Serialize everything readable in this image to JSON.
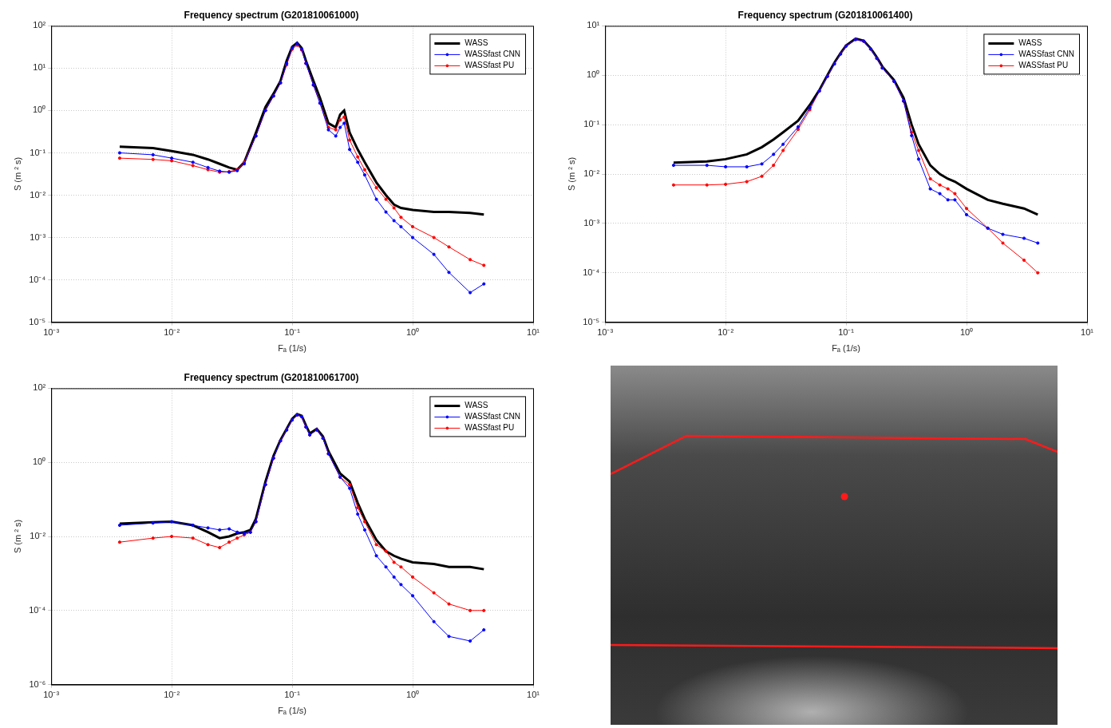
{
  "chart_data": [
    {
      "type": "line",
      "title": "Frequency spectrum (G201810061000)",
      "x_label": "Fₐ (1/s)",
      "y_label": "S (m ² s)",
      "log": true,
      "grid": true,
      "legend": "northeast",
      "xlim": [
        0.001,
        10
      ],
      "xticks": [
        {
          "value": 0.001,
          "label": "10⁻³"
        },
        {
          "value": 0.01,
          "label": "10⁻²"
        },
        {
          "value": 0.1,
          "label": "10⁻¹"
        },
        {
          "value": 1,
          "label": "10⁰"
        },
        {
          "value": 10,
          "label": "10¹"
        }
      ],
      "ylim": [
        1e-05,
        100
      ],
      "yticks": [
        {
          "value": 1e-05,
          "label": "10⁻⁵"
        },
        {
          "value": 0.0001,
          "label": "10⁻⁴"
        },
        {
          "value": 0.001,
          "label": "10⁻³"
        },
        {
          "value": 0.01,
          "label": "10⁻²"
        },
        {
          "value": 0.1,
          "label": "10⁻¹"
        },
        {
          "value": 1,
          "label": "10⁰"
        },
        {
          "value": 10,
          "label": "10¹"
        },
        {
          "value": 100,
          "label": "10²"
        }
      ],
      "x": [
        0.0037,
        0.007,
        0.01,
        0.015,
        0.02,
        0.025,
        0.03,
        0.035,
        0.04,
        0.05,
        0.06,
        0.07,
        0.08,
        0.09,
        0.1,
        0.11,
        0.12,
        0.13,
        0.15,
        0.17,
        0.2,
        0.23,
        0.25,
        0.27,
        0.3,
        0.35,
        0.4,
        0.5,
        0.6,
        0.7,
        0.8,
        1.0,
        1.5,
        2,
        3,
        3.9
      ],
      "series": [
        {
          "name": "WASS",
          "color": "#000000",
          "line_style": "solid",
          "values": [
            0.14,
            0.13,
            0.11,
            0.09,
            0.07,
            0.055,
            0.045,
            0.04,
            0.06,
            0.3,
            1.2,
            2.5,
            5,
            15,
            32,
            40,
            30,
            15,
            5,
            2,
            0.5,
            0.4,
            0.8,
            1.0,
            0.3,
            0.12,
            0.06,
            0.02,
            0.01,
            0.006,
            0.005,
            0.0045,
            0.004,
            0.004,
            0.0038,
            0.0035
          ]
        },
        {
          "name": "WASSfast CNN",
          "color": "#0000ff",
          "line_style": "solid",
          "marker": "dot",
          "values": [
            0.1,
            0.09,
            0.075,
            0.06,
            0.045,
            0.037,
            0.035,
            0.038,
            0.055,
            0.25,
            1.0,
            2.2,
            4.5,
            13,
            30,
            38,
            28,
            13,
            4,
            1.5,
            0.35,
            0.25,
            0.4,
            0.5,
            0.12,
            0.06,
            0.03,
            0.008,
            0.004,
            0.0025,
            0.0018,
            0.001,
            0.0004,
            0.00015,
            5e-05,
            8e-05
          ]
        },
        {
          "name": "WASSfast PU",
          "color": "#ff0000",
          "line_style": "solid",
          "marker": "dot",
          "values": [
            0.075,
            0.07,
            0.065,
            0.05,
            0.04,
            0.035,
            0.036,
            0.04,
            0.06,
            0.25,
            1.0,
            2.2,
            4.5,
            12,
            28,
            35,
            27,
            13,
            4,
            1.5,
            0.4,
            0.35,
            0.6,
            0.7,
            0.2,
            0.08,
            0.04,
            0.015,
            0.008,
            0.005,
            0.003,
            0.0018,
            0.001,
            0.0006,
            0.0003,
            0.00022
          ]
        }
      ]
    },
    {
      "type": "line",
      "title": "Frequency spectrum (G201810061400)",
      "x_label": "Fₐ (1/s)",
      "y_label": "S (m ² s)",
      "log": true,
      "grid": true,
      "legend": "northeast",
      "xlim": [
        0.001,
        10
      ],
      "xticks": [
        {
          "value": 0.001,
          "label": "10⁻³"
        },
        {
          "value": 0.01,
          "label": "10⁻²"
        },
        {
          "value": 0.1,
          "label": "10⁻¹"
        },
        {
          "value": 1,
          "label": "10⁰"
        },
        {
          "value": 10,
          "label": "10¹"
        }
      ],
      "ylim": [
        1e-05,
        10
      ],
      "yticks": [
        {
          "value": 1e-05,
          "label": "10⁻⁵"
        },
        {
          "value": 0.0001,
          "label": "10⁻⁴"
        },
        {
          "value": 0.001,
          "label": "10⁻³"
        },
        {
          "value": 0.01,
          "label": "10⁻²"
        },
        {
          "value": 0.1,
          "label": "10⁻¹"
        },
        {
          "value": 1,
          "label": "10⁰"
        },
        {
          "value": 10,
          "label": "10¹"
        }
      ],
      "x": [
        0.0037,
        0.007,
        0.01,
        0.015,
        0.02,
        0.025,
        0.03,
        0.04,
        0.05,
        0.06,
        0.07,
        0.08,
        0.09,
        0.1,
        0.12,
        0.14,
        0.16,
        0.18,
        0.2,
        0.25,
        0.3,
        0.35,
        0.4,
        0.5,
        0.6,
        0.7,
        0.8,
        1.0,
        1.5,
        2,
        3,
        3.9
      ],
      "series": [
        {
          "name": "WASS",
          "color": "#000000",
          "line_style": "solid",
          "values": [
            0.017,
            0.018,
            0.02,
            0.025,
            0.035,
            0.05,
            0.07,
            0.12,
            0.25,
            0.5,
            1.0,
            1.8,
            2.8,
            4,
            5.5,
            5,
            3.5,
            2.3,
            1.5,
            0.8,
            0.35,
            0.1,
            0.04,
            0.015,
            0.01,
            0.008,
            0.007,
            0.005,
            0.003,
            0.0025,
            0.002,
            0.0015
          ]
        },
        {
          "name": "WASSfast CNN",
          "color": "#0000ff",
          "line_style": "solid",
          "marker": "dot",
          "values": [
            0.015,
            0.015,
            0.014,
            0.014,
            0.016,
            0.025,
            0.04,
            0.09,
            0.22,
            0.48,
            0.95,
            1.7,
            2.7,
            3.9,
            5.3,
            4.9,
            3.4,
            2.2,
            1.4,
            0.75,
            0.3,
            0.06,
            0.02,
            0.005,
            0.004,
            0.003,
            0.003,
            0.0015,
            0.0008,
            0.0006,
            0.0005,
            0.0004
          ]
        },
        {
          "name": "WASSfast PU",
          "color": "#ff0000",
          "line_style": "solid",
          "marker": "dot",
          "values": [
            0.006,
            0.006,
            0.0062,
            0.007,
            0.009,
            0.015,
            0.03,
            0.08,
            0.2,
            0.48,
            0.95,
            1.7,
            2.7,
            3.9,
            5.3,
            4.9,
            3.4,
            2.2,
            1.4,
            0.75,
            0.3,
            0.07,
            0.03,
            0.008,
            0.006,
            0.005,
            0.004,
            0.002,
            0.0008,
            0.0004,
            0.00018,
            0.0001
          ]
        }
      ]
    },
    {
      "type": "line",
      "title": "Frequency spectrum (G201810061700)",
      "x_label": "Fₐ (1/s)",
      "y_label": "S (m ² s)",
      "log": true,
      "grid": true,
      "legend": "northeast",
      "xlim": [
        0.001,
        10
      ],
      "xticks": [
        {
          "value": 0.001,
          "label": "10⁻³"
        },
        {
          "value": 0.01,
          "label": "10⁻²"
        },
        {
          "value": 0.1,
          "label": "10⁻¹"
        },
        {
          "value": 1,
          "label": "10⁰"
        },
        {
          "value": 10,
          "label": "10¹"
        }
      ],
      "ylim": [
        1e-06,
        100
      ],
      "yticks": [
        {
          "value": 1e-06,
          "label": "10⁻⁶"
        },
        {
          "value": 0.0001,
          "label": "10⁻⁴"
        },
        {
          "value": 0.01,
          "label": "10⁻²"
        },
        {
          "value": 1,
          "label": "10⁰"
        },
        {
          "value": 100,
          "label": "10²"
        }
      ],
      "x": [
        0.0037,
        0.007,
        0.01,
        0.015,
        0.02,
        0.025,
        0.03,
        0.035,
        0.04,
        0.045,
        0.05,
        0.06,
        0.07,
        0.08,
        0.09,
        0.1,
        0.11,
        0.12,
        0.13,
        0.14,
        0.16,
        0.18,
        0.2,
        0.25,
        0.3,
        0.35,
        0.4,
        0.5,
        0.6,
        0.7,
        0.8,
        1.0,
        1.5,
        2,
        3,
        3.9
      ],
      "series": [
        {
          "name": "WASS",
          "color": "#000000",
          "line_style": "solid",
          "values": [
            0.022,
            0.024,
            0.025,
            0.02,
            0.013,
            0.009,
            0.01,
            0.012,
            0.013,
            0.015,
            0.03,
            0.3,
            1.5,
            4,
            8,
            15,
            20,
            18,
            10,
            6,
            8,
            5,
            2,
            0.5,
            0.3,
            0.08,
            0.03,
            0.008,
            0.004,
            0.003,
            0.0025,
            0.002,
            0.0018,
            0.0015,
            0.0015,
            0.0013
          ]
        },
        {
          "name": "WASSfast CNN",
          "color": "#0000ff",
          "line_style": "solid",
          "marker": "dot",
          "values": [
            0.02,
            0.023,
            0.025,
            0.02,
            0.017,
            0.015,
            0.016,
            0.013,
            0.012,
            0.013,
            0.025,
            0.25,
            1.3,
            3.8,
            7.5,
            14,
            19,
            17,
            9,
            5.5,
            7.5,
            4.5,
            1.7,
            0.4,
            0.2,
            0.04,
            0.015,
            0.003,
            0.0015,
            0.0008,
            0.0005,
            0.00025,
            5e-05,
            2e-05,
            1.5e-05,
            3e-05
          ]
        },
        {
          "name": "WASSfast PU",
          "color": "#ff0000",
          "line_style": "solid",
          "marker": "dot",
          "values": [
            0.007,
            0.009,
            0.01,
            0.009,
            0.006,
            0.005,
            0.007,
            0.009,
            0.011,
            0.013,
            0.025,
            0.25,
            1.3,
            3.8,
            7.5,
            14,
            19,
            17,
            9,
            5.5,
            7.5,
            4.5,
            1.7,
            0.4,
            0.25,
            0.06,
            0.025,
            0.006,
            0.004,
            0.002,
            0.0015,
            0.0008,
            0.0003,
            0.00015,
            0.0001,
            0.0001
          ]
        }
      ]
    }
  ]
}
